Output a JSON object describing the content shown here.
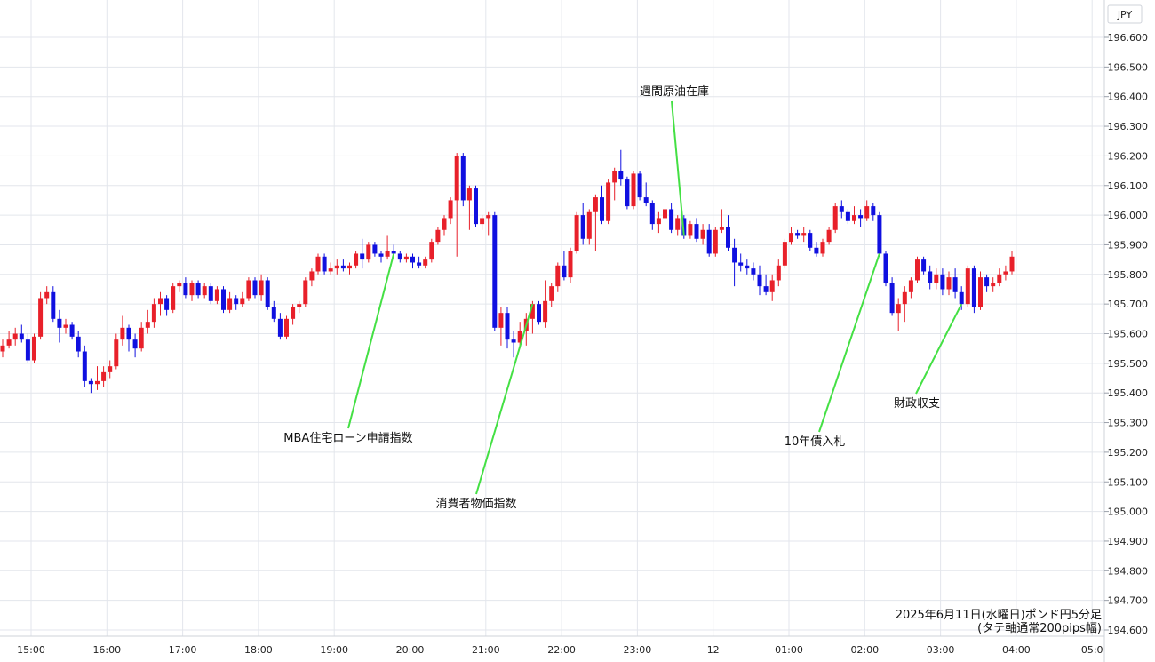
{
  "chart_data": {
    "type": "candlestick",
    "currency_label": "JPY",
    "caption_line1": "2025年6月11日(水曜日)ポンド円5分足",
    "caption_line2": "(タテ軸通常200pips幅)",
    "ylim": [
      194.6,
      196.65
    ],
    "y_ticks": [
      "196.600",
      "196.500",
      "196.400",
      "196.300",
      "196.200",
      "196.100",
      "196.000",
      "195.900",
      "195.800",
      "195.700",
      "195.600",
      "195.500",
      "195.400",
      "195.300",
      "195.200",
      "195.100",
      "195.000",
      "194.900",
      "194.800",
      "194.700",
      "194.600"
    ],
    "x_ticks": [
      "15:00",
      "16:00",
      "17:00",
      "18:00",
      "19:00",
      "20:00",
      "21:00",
      "22:00",
      "23:00",
      "12",
      "01:00",
      "02:00",
      "03:00",
      "04:00",
      "05:0"
    ],
    "up_color": "#e8202a",
    "down_color": "#1010e0",
    "annotation_color": "#44e044",
    "annotations": [
      {
        "label": "MBA住宅ローン申請指数",
        "candle": 62
      },
      {
        "label": "消費者物価指数",
        "candle": 84
      },
      {
        "label": "週間原油在庫",
        "candle": 108
      },
      {
        "label": "10年債入札",
        "candle": 139
      },
      {
        "label": "財政収支",
        "candle": 152
      }
    ],
    "candles": [
      [
        195.54,
        195.58,
        195.52,
        195.56
      ],
      [
        195.56,
        195.61,
        195.55,
        195.58
      ],
      [
        195.58,
        195.62,
        195.56,
        195.6
      ],
      [
        195.6,
        195.63,
        195.57,
        195.58
      ],
      [
        195.58,
        195.6,
        195.5,
        195.51
      ],
      [
        195.51,
        195.6,
        195.5,
        195.59
      ],
      [
        195.59,
        195.74,
        195.58,
        195.72
      ],
      [
        195.72,
        195.76,
        195.7,
        195.74
      ],
      [
        195.74,
        195.76,
        195.64,
        195.65
      ],
      [
        195.65,
        195.68,
        195.57,
        195.62
      ],
      [
        195.62,
        195.65,
        195.6,
        195.63
      ],
      [
        195.63,
        195.64,
        195.58,
        195.59
      ],
      [
        195.59,
        195.61,
        195.52,
        195.54
      ],
      [
        195.54,
        195.56,
        195.42,
        195.44
      ],
      [
        195.44,
        195.45,
        195.4,
        195.43
      ],
      [
        195.43,
        195.49,
        195.41,
        195.44
      ],
      [
        195.44,
        195.49,
        195.42,
        195.47
      ],
      [
        195.47,
        195.51,
        195.45,
        195.49
      ],
      [
        195.49,
        195.6,
        195.48,
        195.58
      ],
      [
        195.58,
        195.66,
        195.56,
        195.62
      ],
      [
        195.62,
        195.63,
        195.54,
        195.58
      ],
      [
        195.58,
        195.6,
        195.52,
        195.55
      ],
      [
        195.55,
        195.64,
        195.54,
        195.62
      ],
      [
        195.62,
        195.68,
        195.6,
        195.64
      ],
      [
        195.64,
        195.72,
        195.62,
        195.7
      ],
      [
        195.7,
        195.74,
        195.66,
        195.72
      ],
      [
        195.72,
        195.73,
        195.66,
        195.68
      ],
      [
        195.68,
        195.77,
        195.67,
        195.76
      ],
      [
        195.76,
        195.78,
        195.74,
        195.77
      ],
      [
        195.77,
        195.79,
        195.72,
        195.73
      ],
      [
        195.73,
        195.78,
        195.71,
        195.77
      ],
      [
        195.77,
        195.78,
        195.72,
        195.73
      ],
      [
        195.73,
        195.77,
        195.72,
        195.76
      ],
      [
        195.76,
        195.77,
        195.7,
        195.71
      ],
      [
        195.71,
        195.76,
        195.7,
        195.75
      ],
      [
        195.75,
        195.76,
        195.67,
        195.68
      ],
      [
        195.68,
        195.74,
        195.67,
        195.72
      ],
      [
        195.72,
        195.73,
        195.68,
        195.7
      ],
      [
        195.7,
        195.74,
        195.69,
        195.72
      ],
      [
        195.72,
        195.79,
        195.71,
        195.78
      ],
      [
        195.78,
        195.79,
        195.72,
        195.73
      ],
      [
        195.73,
        195.8,
        195.71,
        195.78
      ],
      [
        195.78,
        195.79,
        195.68,
        195.69
      ],
      [
        195.69,
        195.71,
        195.64,
        195.65
      ],
      [
        195.65,
        195.67,
        195.58,
        195.59
      ],
      [
        195.59,
        195.66,
        195.58,
        195.65
      ],
      [
        195.65,
        195.7,
        195.63,
        195.69
      ],
      [
        195.69,
        195.71,
        195.67,
        195.7
      ],
      [
        195.7,
        195.79,
        195.69,
        195.78
      ],
      [
        195.78,
        195.82,
        195.76,
        195.81
      ],
      [
        195.81,
        195.87,
        195.8,
        195.86
      ],
      [
        195.86,
        195.87,
        195.8,
        195.81
      ],
      [
        195.81,
        195.84,
        195.8,
        195.82
      ],
      [
        195.82,
        195.85,
        195.8,
        195.83
      ],
      [
        195.83,
        195.85,
        195.81,
        195.82
      ],
      [
        195.82,
        195.84,
        195.8,
        195.83
      ],
      [
        195.83,
        195.88,
        195.82,
        195.87
      ],
      [
        195.87,
        195.92,
        195.82,
        195.85
      ],
      [
        195.85,
        195.91,
        195.84,
        195.9
      ],
      [
        195.9,
        195.91,
        195.86,
        195.87
      ],
      [
        195.87,
        195.88,
        195.84,
        195.86
      ],
      [
        195.86,
        195.93,
        195.85,
        195.88
      ],
      [
        195.88,
        195.9,
        195.86,
        195.87
      ],
      [
        195.87,
        195.88,
        195.84,
        195.85
      ],
      [
        195.85,
        195.87,
        195.84,
        195.86
      ],
      [
        195.86,
        195.87,
        195.82,
        195.84
      ],
      [
        195.84,
        195.86,
        195.82,
        195.83
      ],
      [
        195.83,
        195.86,
        195.82,
        195.85
      ],
      [
        195.85,
        195.92,
        195.84,
        195.91
      ],
      [
        195.91,
        195.96,
        195.9,
        195.95
      ],
      [
        195.95,
        196.0,
        195.93,
        195.99
      ],
      [
        195.99,
        196.06,
        195.97,
        196.05
      ],
      [
        196.05,
        196.21,
        195.86,
        196.2
      ],
      [
        196.2,
        196.21,
        196.03,
        196.05
      ],
      [
        196.05,
        196.1,
        195.95,
        196.09
      ],
      [
        196.09,
        196.1,
        195.96,
        195.97
      ],
      [
        195.97,
        196.0,
        195.95,
        195.99
      ],
      [
        195.99,
        196.01,
        195.93,
        196.0
      ],
      [
        196.0,
        196.01,
        195.61,
        195.62
      ],
      [
        195.62,
        195.69,
        195.56,
        195.67
      ],
      [
        195.67,
        195.69,
        195.55,
        195.58
      ],
      [
        195.58,
        195.61,
        195.52,
        195.57
      ],
      [
        195.57,
        195.64,
        195.55,
        195.61
      ],
      [
        195.61,
        195.67,
        195.56,
        195.65
      ],
      [
        195.65,
        195.71,
        195.6,
        195.7
      ],
      [
        195.7,
        195.71,
        195.63,
        195.64
      ],
      [
        195.64,
        195.78,
        195.62,
        195.71
      ],
      [
        195.71,
        195.77,
        195.69,
        195.76
      ],
      [
        195.76,
        195.84,
        195.74,
        195.83
      ],
      [
        195.83,
        195.88,
        195.78,
        195.79
      ],
      [
        195.79,
        195.89,
        195.77,
        195.88
      ],
      [
        195.88,
        196.01,
        195.87,
        196.0
      ],
      [
        196.0,
        196.04,
        195.9,
        195.92
      ],
      [
        195.92,
        196.02,
        195.9,
        196.01
      ],
      [
        196.01,
        196.07,
        195.88,
        196.06
      ],
      [
        196.06,
        196.1,
        195.97,
        195.98
      ],
      [
        195.98,
        196.12,
        195.97,
        196.11
      ],
      [
        196.11,
        196.16,
        196.05,
        196.15
      ],
      [
        196.15,
        196.22,
        196.1,
        196.12
      ],
      [
        196.12,
        196.13,
        196.02,
        196.03
      ],
      [
        196.03,
        196.15,
        196.02,
        196.14
      ],
      [
        196.14,
        196.15,
        196.05,
        196.06
      ],
      [
        196.06,
        196.11,
        196.03,
        196.04
      ],
      [
        196.04,
        196.05,
        195.95,
        195.97
      ],
      [
        195.97,
        196.01,
        195.94,
        195.99
      ],
      [
        195.99,
        196.03,
        195.98,
        196.02
      ],
      [
        196.02,
        196.04,
        195.94,
        195.95
      ],
      [
        195.95,
        196.0,
        195.93,
        195.99
      ],
      [
        195.99,
        196.0,
        195.92,
        195.93
      ],
      [
        195.93,
        195.98,
        195.92,
        195.97
      ],
      [
        195.97,
        195.99,
        195.91,
        195.92
      ],
      [
        195.92,
        195.97,
        195.9,
        195.95
      ],
      [
        195.95,
        195.97,
        195.86,
        195.87
      ],
      [
        195.87,
        195.96,
        195.86,
        195.95
      ],
      [
        195.95,
        196.02,
        195.94,
        195.96
      ],
      [
        195.96,
        196.0,
        195.88,
        195.89
      ],
      [
        195.89,
        195.92,
        195.76,
        195.84
      ],
      [
        195.84,
        195.87,
        195.81,
        195.83
      ],
      [
        195.83,
        195.85,
        195.8,
        195.82
      ],
      [
        195.82,
        195.84,
        195.78,
        195.8
      ],
      [
        195.8,
        195.83,
        195.73,
        195.76
      ],
      [
        195.76,
        195.8,
        195.73,
        195.74
      ],
      [
        195.74,
        195.8,
        195.71,
        195.78
      ],
      [
        195.78,
        195.85,
        195.76,
        195.83
      ],
      [
        195.83,
        195.92,
        195.82,
        195.91
      ],
      [
        195.91,
        195.96,
        195.9,
        195.94
      ],
      [
        195.94,
        195.95,
        195.92,
        195.93
      ],
      [
        195.93,
        195.96,
        195.91,
        195.94
      ],
      [
        195.94,
        195.95,
        195.88,
        195.89
      ],
      [
        195.89,
        195.91,
        195.86,
        195.87
      ],
      [
        195.87,
        195.92,
        195.86,
        195.91
      ],
      [
        195.91,
        195.96,
        195.9,
        195.95
      ],
      [
        195.95,
        196.04,
        195.94,
        196.03
      ],
      [
        196.03,
        196.05,
        195.99,
        196.01
      ],
      [
        196.01,
        196.02,
        195.97,
        195.98
      ],
      [
        195.98,
        196.03,
        195.97,
        196.0
      ],
      [
        196.0,
        196.02,
        195.96,
        195.99
      ],
      [
        195.99,
        196.05,
        195.98,
        196.03
      ],
      [
        196.03,
        196.04,
        195.98,
        196.0
      ],
      [
        196.0,
        196.01,
        195.86,
        195.87
      ],
      [
        195.87,
        195.88,
        195.76,
        195.77
      ],
      [
        195.77,
        195.79,
        195.66,
        195.67
      ],
      [
        195.67,
        195.72,
        195.61,
        195.7
      ],
      [
        195.7,
        195.76,
        195.64,
        195.74
      ],
      [
        195.74,
        195.79,
        195.72,
        195.78
      ],
      [
        195.78,
        195.86,
        195.77,
        195.85
      ],
      [
        195.85,
        195.86,
        195.8,
        195.81
      ],
      [
        195.81,
        195.83,
        195.75,
        195.77
      ],
      [
        195.77,
        195.82,
        195.75,
        195.8
      ],
      [
        195.8,
        195.82,
        195.73,
        195.75
      ],
      [
        195.75,
        195.81,
        195.73,
        195.79
      ],
      [
        195.79,
        195.82,
        195.72,
        195.74
      ],
      [
        195.74,
        195.76,
        195.68,
        195.7
      ],
      [
        195.7,
        195.83,
        195.69,
        195.82
      ],
      [
        195.82,
        195.83,
        195.67,
        195.69
      ],
      [
        195.69,
        195.81,
        195.68,
        195.79
      ],
      [
        195.79,
        195.8,
        195.74,
        195.76
      ],
      [
        195.76,
        195.79,
        195.74,
        195.77
      ],
      [
        195.77,
        195.82,
        195.76,
        195.8
      ],
      [
        195.8,
        195.83,
        195.78,
        195.81
      ],
      [
        195.81,
        195.88,
        195.8,
        195.86
      ]
    ]
  }
}
